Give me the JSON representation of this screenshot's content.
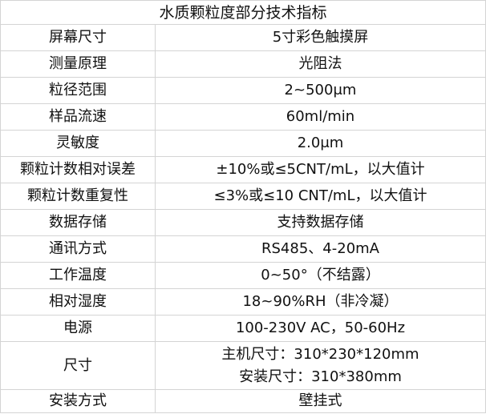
{
  "title": "水质颗粒度部分技术指标",
  "rows": [
    {
      "label": "屏幕尺寸",
      "value": [
        "5寸彩色触摸屏"
      ]
    },
    {
      "label": "测量原理",
      "value": [
        "光阻法"
      ]
    },
    {
      "label": "粒径范围",
      "value": [
        "2~500μm"
      ]
    },
    {
      "label": "样品流速",
      "value": [
        "60ml/min"
      ]
    },
    {
      "label": "灵敏度",
      "value": [
        "2.0μm"
      ]
    },
    {
      "label": "颗粒计数相对误差",
      "value": [
        "±10%或≤5CNT/mL，以大值计"
      ]
    },
    {
      "label": "颗粒计数重复性",
      "value": [
        "≤3%或≤10 CNT/mL，以大值计"
      ]
    },
    {
      "label": "数据存储",
      "value": [
        "支持数据存储"
      ]
    },
    {
      "label": "通讯方式",
      "value": [
        "RS485、4-20mA"
      ]
    },
    {
      "label": "工作温度",
      "value": [
        "0~50°（不结露）"
      ]
    },
    {
      "label": "相对湿度",
      "value": [
        "18~90%RH（非冷凝）"
      ]
    },
    {
      "label": "电源",
      "value": [
        "100-230V AC，50-60Hz"
      ]
    },
    {
      "label": "尺寸",
      "value": [
        "主机尺寸：310*230*120mm",
        "安装尺寸：310*380mm"
      ]
    },
    {
      "label": "安装方式",
      "value": [
        "壁挂式"
      ]
    }
  ]
}
